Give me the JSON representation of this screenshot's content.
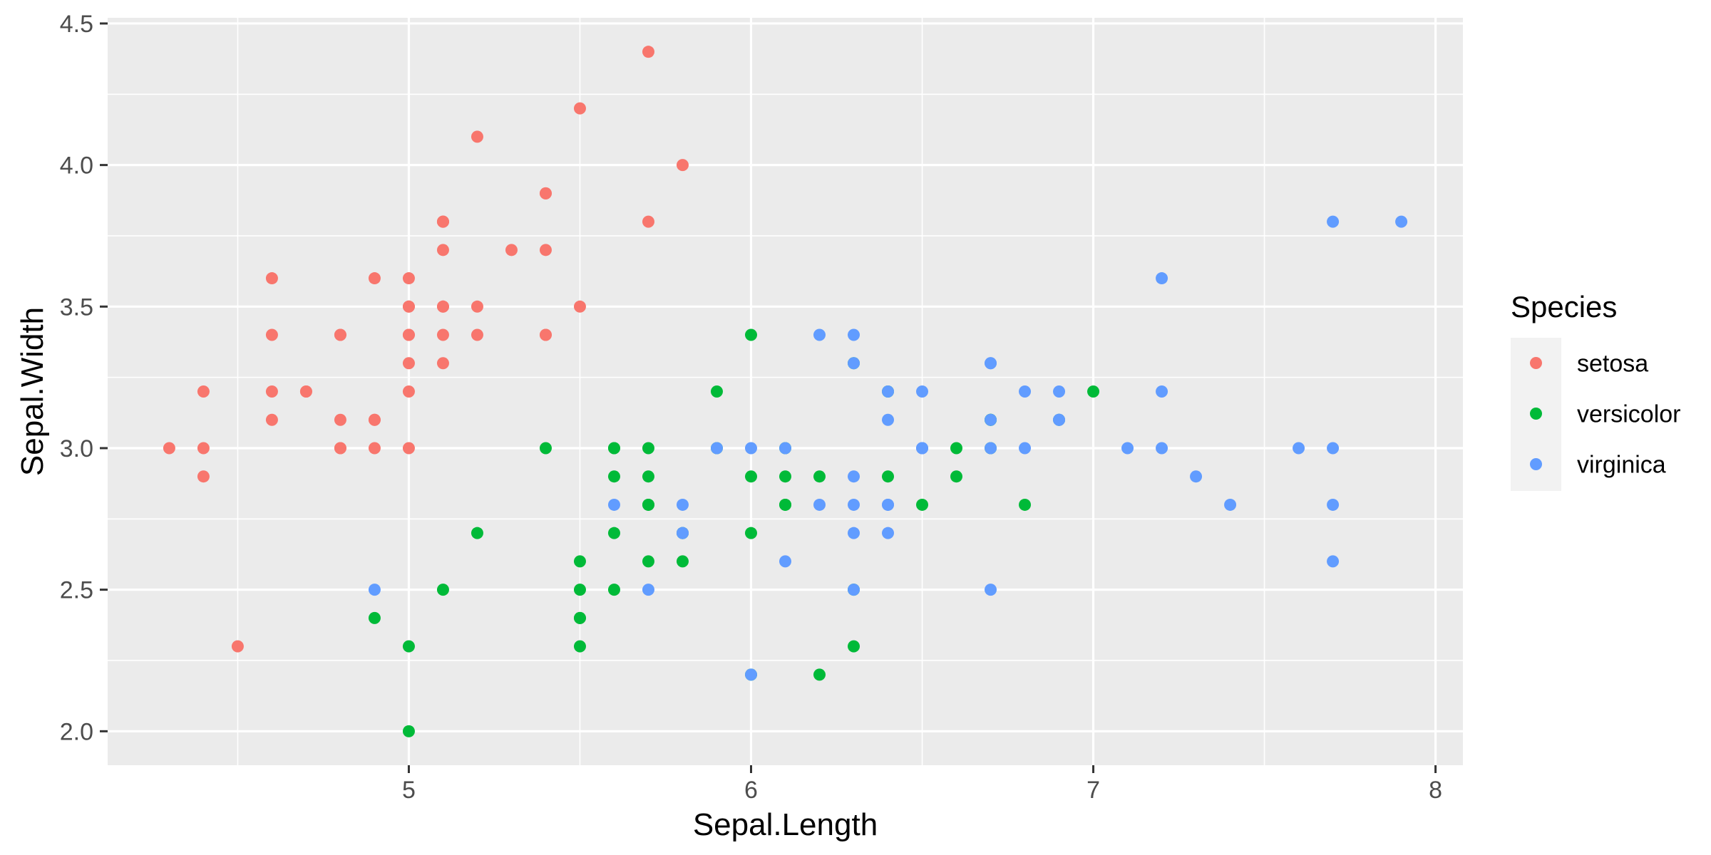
{
  "chart_data": {
    "type": "scatter",
    "title": "",
    "xlabel": "Sepal.Length",
    "ylabel": "Sepal.Width",
    "xlim": [
      4.12,
      8.08
    ],
    "ylim": [
      1.88,
      4.52
    ],
    "xticks": [
      5,
      6,
      7,
      8
    ],
    "yticks": [
      2.0,
      2.5,
      3.0,
      3.5,
      4.0,
      4.5
    ],
    "ytick_labels": [
      "2.0",
      "2.5",
      "3.0",
      "3.5",
      "4.0",
      "4.5"
    ],
    "grid": true,
    "background": "#EBEBEB",
    "gridline_color": "#FFFFFF",
    "legend": {
      "title": "Species",
      "position": "right",
      "entries": [
        "setosa",
        "versicolor",
        "virginica"
      ]
    },
    "series": [
      {
        "name": "setosa",
        "color": "#F8766D",
        "x": [
          5.1,
          4.9,
          4.7,
          4.6,
          5.0,
          5.4,
          4.6,
          5.0,
          4.4,
          4.9,
          5.4,
          4.8,
          4.8,
          4.3,
          5.8,
          5.7,
          5.4,
          5.1,
          5.7,
          5.1,
          5.4,
          5.1,
          4.6,
          5.1,
          4.8,
          5.0,
          5.0,
          5.2,
          5.2,
          4.7,
          4.8,
          5.4,
          5.2,
          5.5,
          4.9,
          5.0,
          5.5,
          4.9,
          4.4,
          5.1,
          5.0,
          4.5,
          4.4,
          5.0,
          5.1,
          4.8,
          5.1,
          4.6,
          5.3,
          5.0
        ],
        "y": [
          3.5,
          3.0,
          3.2,
          3.1,
          3.6,
          3.9,
          3.4,
          3.4,
          2.9,
          3.1,
          3.7,
          3.4,
          3.0,
          3.0,
          4.0,
          4.4,
          3.9,
          3.5,
          3.8,
          3.8,
          3.4,
          3.7,
          3.6,
          3.3,
          3.4,
          3.0,
          3.4,
          3.5,
          3.4,
          3.2,
          3.1,
          3.4,
          4.1,
          4.2,
          3.1,
          3.2,
          3.5,
          3.6,
          3.0,
          3.4,
          3.5,
          2.3,
          3.2,
          3.5,
          3.8,
          3.0,
          3.8,
          3.2,
          3.7,
          3.3
        ]
      },
      {
        "name": "versicolor",
        "color": "#00BA38",
        "x": [
          7.0,
          6.4,
          6.9,
          5.5,
          6.5,
          5.7,
          6.3,
          4.9,
          6.6,
          5.2,
          5.0,
          5.9,
          6.0,
          6.1,
          5.6,
          6.7,
          5.6,
          5.8,
          6.2,
          5.6,
          5.9,
          6.1,
          6.3,
          6.1,
          6.4,
          6.6,
          6.8,
          6.7,
          6.0,
          5.7,
          5.5,
          5.5,
          5.8,
          6.0,
          5.4,
          6.0,
          6.7,
          6.3,
          5.6,
          5.5,
          5.5,
          6.1,
          5.8,
          5.0,
          5.6,
          5.7,
          5.7,
          6.2,
          5.1,
          5.7
        ],
        "y": [
          3.2,
          3.2,
          3.1,
          2.3,
          2.8,
          2.8,
          3.3,
          2.4,
          2.9,
          2.7,
          2.0,
          3.0,
          2.2,
          2.9,
          2.9,
          3.1,
          3.0,
          2.7,
          2.2,
          2.5,
          3.2,
          2.8,
          2.5,
          2.8,
          2.9,
          3.0,
          2.8,
          3.0,
          2.9,
          2.6,
          2.4,
          2.4,
          2.7,
          2.7,
          3.0,
          3.4,
          3.1,
          2.3,
          3.0,
          2.5,
          2.6,
          3.0,
          2.6,
          2.3,
          2.7,
          3.0,
          2.9,
          2.9,
          2.5,
          2.8
        ]
      },
      {
        "name": "virginica",
        "color": "#619CFF",
        "x": [
          6.3,
          5.8,
          7.1,
          6.3,
          6.5,
          7.6,
          4.9,
          7.3,
          6.7,
          7.2,
          6.5,
          6.4,
          6.8,
          5.7,
          5.8,
          6.4,
          6.5,
          7.7,
          7.7,
          6.0,
          6.9,
          5.6,
          7.7,
          6.3,
          6.7,
          7.2,
          6.2,
          6.1,
          6.4,
          7.2,
          7.4,
          7.9,
          6.4,
          6.3,
          6.1,
          7.7,
          6.3,
          6.4,
          6.0,
          6.9,
          6.7,
          6.9,
          5.8,
          6.8,
          6.7,
          6.7,
          6.3,
          6.5,
          6.2,
          5.9
        ],
        "y": [
          3.3,
          2.7,
          3.0,
          2.9,
          3.0,
          3.0,
          2.5,
          2.9,
          2.5,
          3.6,
          3.2,
          2.7,
          3.0,
          2.5,
          2.8,
          3.2,
          3.0,
          3.8,
          2.6,
          2.2,
          3.2,
          2.8,
          2.8,
          2.7,
          3.3,
          3.2,
          2.8,
          3.0,
          2.8,
          3.0,
          2.8,
          3.8,
          2.8,
          2.8,
          2.6,
          3.0,
          3.4,
          3.1,
          3.0,
          3.1,
          3.1,
          3.1,
          2.7,
          3.2,
          3.3,
          3.0,
          2.5,
          3.0,
          3.4,
          3.0
        ]
      }
    ]
  }
}
